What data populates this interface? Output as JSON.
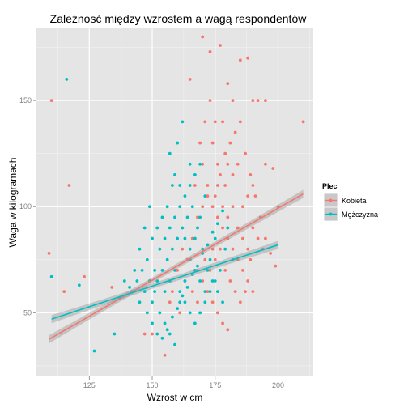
{
  "chart_data": {
    "type": "scatter",
    "title": "Zależnosć między wzrostem a wagą respondentów",
    "xlabel": "Wzrost w cm",
    "ylabel": "Waga w kilogramach",
    "xlim": [
      104,
      214
    ],
    "ylim": [
      20,
      184
    ],
    "xticks": [
      125,
      150,
      175,
      200
    ],
    "yticks": [
      50,
      100,
      150
    ],
    "grid": true,
    "legend": {
      "title": "Plec",
      "position": "right"
    },
    "series": [
      {
        "name": "Kobieta",
        "color": "#F8766D",
        "trend": {
          "x": [
            109,
            210
          ],
          "y": [
            37.5,
            106
          ]
        },
        "points": [
          [
            110,
            150
          ],
          [
            109,
            78
          ],
          [
            115,
            60
          ],
          [
            117,
            110
          ],
          [
            123,
            67
          ],
          [
            134,
            62
          ],
          [
            147,
            40
          ],
          [
            155,
            30
          ],
          [
            150,
            40
          ],
          [
            165,
            160
          ],
          [
            170,
            180
          ],
          [
            173,
            173
          ],
          [
            177,
            176
          ],
          [
            185,
            169
          ],
          [
            188,
            170
          ],
          [
            180,
            158
          ],
          [
            182,
            150
          ],
          [
            190,
            150
          ],
          [
            192,
            150
          ],
          [
            195,
            150
          ],
          [
            210,
            140
          ],
          [
            195,
            120
          ],
          [
            198,
            118
          ],
          [
            200,
            100
          ],
          [
            170,
            120
          ],
          [
            172,
            110
          ],
          [
            174,
            100
          ],
          [
            176,
            95
          ],
          [
            178,
            90
          ],
          [
            180,
            85
          ],
          [
            182,
            80
          ],
          [
            184,
            75
          ],
          [
            186,
            70
          ],
          [
            188,
            65
          ],
          [
            190,
            60
          ],
          [
            168,
            70
          ],
          [
            170,
            65
          ],
          [
            172,
            60
          ],
          [
            174,
            55
          ],
          [
            176,
            50
          ],
          [
            178,
            45
          ],
          [
            180,
            42
          ],
          [
            175,
            105
          ],
          [
            177,
            115
          ],
          [
            179,
            125
          ],
          [
            181,
            130
          ],
          [
            183,
            135
          ],
          [
            185,
            140
          ],
          [
            187,
            125
          ],
          [
            189,
            115
          ],
          [
            191,
            105
          ],
          [
            193,
            95
          ],
          [
            195,
            85
          ],
          [
            197,
            78
          ],
          [
            199,
            72
          ],
          [
            166,
            85
          ],
          [
            168,
            95
          ],
          [
            170,
            100
          ],
          [
            172,
            105
          ],
          [
            174,
            80
          ],
          [
            176,
            110
          ],
          [
            178,
            100
          ],
          [
            180,
            95
          ],
          [
            182,
            100
          ],
          [
            184,
            90
          ],
          [
            186,
            85
          ],
          [
            188,
            80
          ],
          [
            190,
            90
          ],
          [
            192,
            85
          ],
          [
            194,
            80
          ],
          [
            171,
            75
          ],
          [
            173,
            70
          ],
          [
            175,
            75
          ],
          [
            177,
            80
          ],
          [
            179,
            70
          ],
          [
            181,
            65
          ],
          [
            183,
            60
          ],
          [
            185,
            55
          ],
          [
            187,
            60
          ],
          [
            189,
            75
          ],
          [
            164,
            75
          ],
          [
            166,
            60
          ],
          [
            168,
            55
          ],
          [
            162,
            80
          ],
          [
            163,
            65
          ],
          [
            167,
            110
          ],
          [
            169,
            130
          ],
          [
            171,
            140
          ],
          [
            173,
            150
          ],
          [
            175,
            140
          ],
          [
            160,
            70
          ],
          [
            158,
            60
          ],
          [
            157,
            55
          ],
          [
            161,
            50
          ],
          [
            186,
            100
          ],
          [
            188,
            105
          ],
          [
            190,
            110
          ],
          [
            184,
            120
          ],
          [
            182,
            115
          ],
          [
            179,
            110
          ],
          [
            176,
            120
          ],
          [
            174,
            130
          ],
          [
            178,
            140
          ],
          [
            180,
            120
          ]
        ]
      },
      {
        "name": "Mężczyzna",
        "color": "#00BFC4",
        "trend": {
          "x": [
            110,
            200
          ],
          "y": [
            47,
            82
          ]
        },
        "points": [
          [
            110,
            67
          ],
          [
            116,
            160
          ],
          [
            121,
            63
          ],
          [
            127,
            32
          ],
          [
            135,
            40
          ],
          [
            137,
            57
          ],
          [
            139,
            65
          ],
          [
            141,
            62
          ],
          [
            143,
            70
          ],
          [
            145,
            80
          ],
          [
            147,
            90
          ],
          [
            149,
            100
          ],
          [
            151,
            60
          ],
          [
            153,
            50
          ],
          [
            155,
            45
          ],
          [
            157,
            40
          ],
          [
            159,
            35
          ],
          [
            161,
            55
          ],
          [
            163,
            65
          ],
          [
            165,
            75
          ],
          [
            167,
            85
          ],
          [
            169,
            95
          ],
          [
            171,
            105
          ],
          [
            160,
            130
          ],
          [
            162,
            140
          ],
          [
            165,
            120
          ],
          [
            158,
            110
          ],
          [
            156,
            100
          ],
          [
            154,
            95
          ],
          [
            152,
            90
          ],
          [
            150,
            85
          ],
          [
            148,
            75
          ],
          [
            146,
            70
          ],
          [
            144,
            65
          ],
          [
            142,
            60
          ],
          [
            150,
            55
          ],
          [
            152,
            65
          ],
          [
            154,
            70
          ],
          [
            156,
            75
          ],
          [
            158,
            80
          ],
          [
            160,
            85
          ],
          [
            162,
            90
          ],
          [
            164,
            95
          ],
          [
            166,
            100
          ],
          [
            168,
            90
          ],
          [
            170,
            80
          ],
          [
            172,
            70
          ],
          [
            174,
            65
          ],
          [
            176,
            60
          ],
          [
            178,
            55
          ],
          [
            155,
            60
          ],
          [
            157,
            65
          ],
          [
            159,
            70
          ],
          [
            161,
            60
          ],
          [
            163,
            55
          ],
          [
            165,
            50
          ],
          [
            167,
            45
          ],
          [
            169,
            50
          ],
          [
            171,
            55
          ],
          [
            173,
            60
          ],
          [
            175,
            65
          ],
          [
            153,
            80
          ],
          [
            155,
            85
          ],
          [
            157,
            90
          ],
          [
            159,
            95
          ],
          [
            161,
            100
          ],
          [
            163,
            105
          ],
          [
            165,
            110
          ],
          [
            167,
            115
          ],
          [
            169,
            120
          ],
          [
            151,
            70
          ],
          [
            149,
            65
          ],
          [
            147,
            60
          ],
          [
            145,
            55
          ],
          [
            148,
            50
          ],
          [
            150,
            45
          ],
          [
            152,
            40
          ],
          [
            154,
            38
          ],
          [
            156,
            42
          ],
          [
            158,
            48
          ],
          [
            160,
            52
          ],
          [
            162,
            58
          ],
          [
            164,
            62
          ],
          [
            166,
            68
          ],
          [
            168,
            72
          ],
          [
            170,
            78
          ],
          [
            172,
            82
          ],
          [
            174,
            88
          ],
          [
            176,
            92
          ],
          [
            178,
            98
          ],
          [
            157,
            125
          ],
          [
            159,
            115
          ],
          [
            161,
            110
          ],
          [
            163,
            85
          ],
          [
            165,
            80
          ],
          [
            167,
            70
          ],
          [
            169,
            65
          ],
          [
            171,
            60
          ],
          [
            173,
            75
          ],
          [
            175,
            85
          ],
          [
            180,
            90
          ],
          [
            182,
            75
          ],
          [
            179,
            80
          ],
          [
            177,
            70
          ]
        ]
      }
    ]
  }
}
